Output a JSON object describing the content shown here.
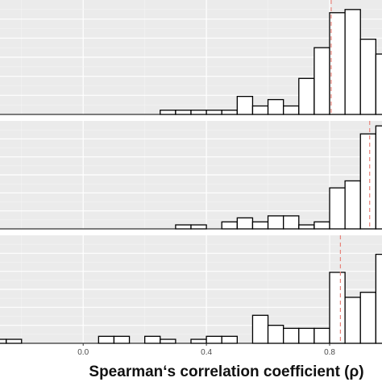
{
  "chart_data": {
    "type": "bar",
    "xlabel": "Spearman‘s correlation coefficient (ρ)",
    "ylabel": "",
    "bin_width": 0.05,
    "xlim": [
      -0.27,
      0.97
    ],
    "x_ticks": [
      0.0,
      0.4,
      0.8
    ],
    "x_tick_labels": [
      "0.0",
      "0.4",
      "0.8"
    ],
    "grid": true,
    "panels": [
      {
        "ylim": [
          0,
          10.8
        ],
        "reference_line": 0.805,
        "bins": [
          {
            "x": 0.275,
            "count": 0.4
          },
          {
            "x": 0.325,
            "count": 0.4
          },
          {
            "x": 0.375,
            "count": 0.4
          },
          {
            "x": 0.425,
            "count": 0.4
          },
          {
            "x": 0.475,
            "count": 0.4
          },
          {
            "x": 0.525,
            "count": 1.7
          },
          {
            "x": 0.575,
            "count": 0.8
          },
          {
            "x": 0.625,
            "count": 1.4
          },
          {
            "x": 0.675,
            "count": 0.8
          },
          {
            "x": 0.725,
            "count": 3.4
          },
          {
            "x": 0.775,
            "count": 6.3
          },
          {
            "x": 0.825,
            "count": 9.6
          },
          {
            "x": 0.875,
            "count": 9.9
          },
          {
            "x": 0.925,
            "count": 7.1
          },
          {
            "x": 0.975,
            "count": 5.7
          }
        ]
      },
      {
        "ylim": [
          0,
          10.8
        ],
        "reference_line": 0.93,
        "bins": [
          {
            "x": 0.325,
            "count": 0.4
          },
          {
            "x": 0.375,
            "count": 0.4
          },
          {
            "x": 0.475,
            "count": 0.7
          },
          {
            "x": 0.525,
            "count": 1.1
          },
          {
            "x": 0.575,
            "count": 0.7
          },
          {
            "x": 0.625,
            "count": 1.3
          },
          {
            "x": 0.675,
            "count": 1.3
          },
          {
            "x": 0.725,
            "count": 0.4
          },
          {
            "x": 0.775,
            "count": 0.7
          },
          {
            "x": 0.825,
            "count": 4.1
          },
          {
            "x": 0.875,
            "count": 4.8
          },
          {
            "x": 0.925,
            "count": 9.5
          },
          {
            "x": 0.975,
            "count": 10.3
          }
        ]
      },
      {
        "ylim": [
          0,
          10.8
        ],
        "reference_line": 0.835,
        "bins": [
          {
            "x": -0.225,
            "count": 0.4
          },
          {
            "x": -0.275,
            "count": 0.4
          },
          {
            "x": 0.075,
            "count": 0.7
          },
          {
            "x": 0.125,
            "count": 0.7
          },
          {
            "x": 0.225,
            "count": 0.7
          },
          {
            "x": 0.275,
            "count": 0.4
          },
          {
            "x": 0.375,
            "count": 0.4
          },
          {
            "x": 0.425,
            "count": 0.7
          },
          {
            "x": 0.475,
            "count": 0.7
          },
          {
            "x": 0.575,
            "count": 2.8
          },
          {
            "x": 0.625,
            "count": 1.8
          },
          {
            "x": 0.675,
            "count": 1.5
          },
          {
            "x": 0.725,
            "count": 1.5
          },
          {
            "x": 0.775,
            "count": 1.5
          },
          {
            "x": 0.825,
            "count": 7.1
          },
          {
            "x": 0.875,
            "count": 4.6
          },
          {
            "x": 0.925,
            "count": 5.1
          },
          {
            "x": 0.975,
            "count": 8.9
          }
        ]
      }
    ]
  },
  "colors": {
    "panel_background": "#ebebeb",
    "grid_major": "#ffffff",
    "grid_minor": "#f5f5f5",
    "bar_fill": "#ffffff",
    "bar_stroke": "#000000",
    "reference_line": "#e8837a",
    "tick_text": "#4d4d4d",
    "axis_title": "#111111"
  }
}
